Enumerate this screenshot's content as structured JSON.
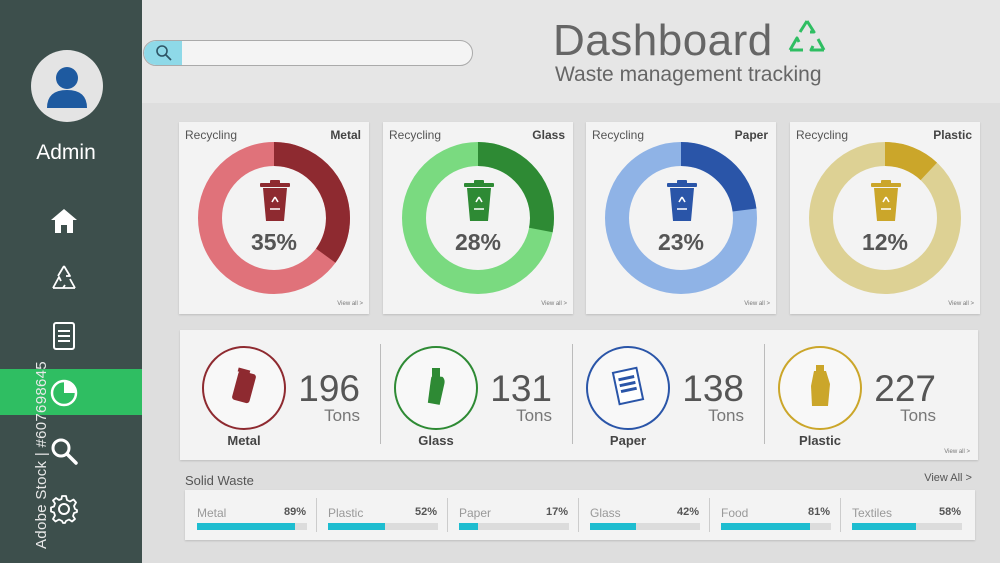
{
  "sidebar": {
    "user_label": "Admin",
    "items": [
      {
        "name": "home",
        "icon": "home-icon",
        "active": false
      },
      {
        "name": "recycle",
        "icon": "recycle-icon",
        "active": false
      },
      {
        "name": "documents",
        "icon": "document-icon",
        "active": false
      },
      {
        "name": "reports",
        "icon": "pie-chart-icon",
        "active": true
      },
      {
        "name": "search",
        "icon": "search-icon",
        "active": false
      },
      {
        "name": "settings",
        "icon": "gear-icon",
        "active": false
      }
    ],
    "watermark": "Adobe Stock | #607698645"
  },
  "header": {
    "search_placeholder": "",
    "title": "Dashboard",
    "subtitle": "Waste management tracking"
  },
  "recycling_cards": [
    {
      "label": "Recycling",
      "material": "Metal",
      "percent": "35%",
      "value": 35,
      "color": "#8e2a30",
      "ring": "#e0727a",
      "view": "View all >"
    },
    {
      "label": "Recycling",
      "material": "Glass",
      "percent": "28%",
      "value": 28,
      "color": "#2e8a34",
      "ring": "#7ada80",
      "view": "View all >"
    },
    {
      "label": "Recycling",
      "material": "Paper",
      "percent": "23%",
      "value": 23,
      "color": "#2a55a8",
      "ring": "#8fb3e6",
      "view": "View all >"
    },
    {
      "label": "Recycling",
      "material": "Plastic",
      "percent": "12%",
      "value": 12,
      "color": "#cba62a",
      "ring": "#ddd194",
      "view": "View all >"
    }
  ],
  "stats": {
    "items": [
      {
        "name": "Metal",
        "value": "196",
        "unit": "Tons",
        "color": "#8e2a30"
      },
      {
        "name": "Glass",
        "value": "131",
        "unit": "Tons",
        "color": "#2e8a34"
      },
      {
        "name": "Paper",
        "value": "138",
        "unit": "Tons",
        "color": "#2a55a8"
      },
      {
        "name": "Plastic",
        "value": "227",
        "unit": "Tons",
        "color": "#cba62a"
      }
    ],
    "view": "View all >"
  },
  "solid_waste": {
    "title": "Solid Waste",
    "view_all": "View All >",
    "items": [
      {
        "name": "Metal",
        "percent": "89%",
        "value": 0.89
      },
      {
        "name": "Plastic",
        "percent": "52%",
        "value": 0.52
      },
      {
        "name": "Paper",
        "percent": "17%",
        "value": 0.17
      },
      {
        "name": "Glass",
        "percent": "42%",
        "value": 0.42
      },
      {
        "name": "Food",
        "percent": "81%",
        "value": 0.81
      },
      {
        "name": "Textiles",
        "percent": "58%",
        "value": 0.58
      }
    ],
    "bar_color": "#1ebdd0"
  }
}
